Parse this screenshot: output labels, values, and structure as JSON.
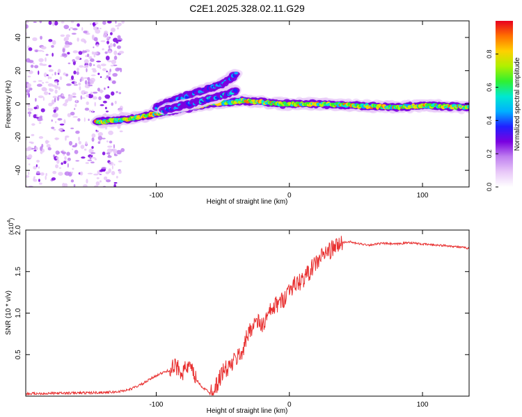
{
  "title": "C2E1.2025.328.02.11.G29",
  "chart_data": [
    {
      "type": "heatmap",
      "name": "spectrogram",
      "xlabel": "Height of straight line (km)",
      "ylabel": "Frequency (Hz)",
      "xlim": [
        -198,
        135
      ],
      "ylim": [
        -50,
        50
      ],
      "xticks": [
        -100,
        0,
        100
      ],
      "xtick_labels": [
        "-100",
        "0",
        "100"
      ],
      "yticks": [
        -40,
        -20,
        0,
        20,
        40
      ],
      "ytick_labels": [
        "-40",
        "-20",
        "0",
        "20",
        "40"
      ],
      "colorbar": {
        "label": "Normalized spectral amplitude",
        "range": [
          0,
          1
        ],
        "ticks": [
          0.0,
          0.2,
          0.4,
          0.6,
          0.8
        ],
        "tick_labels": [
          "0.0",
          "0.2",
          "0.4",
          "0.6",
          "0.8"
        ],
        "colors": [
          "#ffffff",
          "#e8c8f8",
          "#c080f0",
          "#7a00e0",
          "#2020ff",
          "#00b0ff",
          "#00e8d0",
          "#30f030",
          "#b0f000",
          "#ffd000",
          "#ff7000",
          "#e80020"
        ]
      },
      "tracks": [
        {
          "name": "main-track",
          "x": [
            -145,
            -120,
            -100,
            -80,
            -60,
            -45,
            -35,
            -20,
            -5,
            0,
            20,
            50,
            80,
            100,
            135
          ],
          "y": [
            -11,
            -9,
            -6,
            -3,
            0,
            1,
            2,
            1,
            0,
            0,
            0,
            -1,
            -2,
            -1,
            -2
          ],
          "amplitude": 0.9
        },
        {
          "name": "upper-branch",
          "x": [
            -100,
            -80,
            -65,
            -50,
            -40
          ],
          "y": [
            -2,
            4,
            8,
            12,
            18
          ],
          "amplitude": 0.5
        },
        {
          "name": "middle-branch",
          "x": [
            -95,
            -75,
            -55,
            -40
          ],
          "y": [
            -4,
            0,
            4,
            8
          ],
          "amplitude": 0.55
        }
      ],
      "noise_region": {
        "xmin": -198,
        "xmax": -125
      }
    },
    {
      "type": "line",
      "name": "snr",
      "xlabel": "Height of straight line (km)",
      "ylabel": "SNR (10 * v/v)",
      "scale_label": "(x10",
      "scale_exponent": "4",
      "scale_suffix": ")",
      "xlim": [
        -198,
        135
      ],
      "ylim": [
        0,
        2.0
      ],
      "xticks": [
        -100,
        0,
        100
      ],
      "xtick_labels": [
        "-100",
        "0",
        "100"
      ],
      "yticks": [
        0.5,
        1.0,
        1.5,
        2.0
      ],
      "ytick_labels": [
        "0.5",
        "1.0",
        "1.5",
        "2.0"
      ],
      "color": "#e83030",
      "series": [
        {
          "name": "SNR",
          "x": [
            -198,
            -150,
            -130,
            -120,
            -110,
            -100,
            -92,
            -85,
            -80,
            -75,
            -70,
            -65,
            -60,
            -55,
            -50,
            -45,
            -40,
            -35,
            -30,
            -25,
            -20,
            -15,
            -10,
            -5,
            0,
            5,
            10,
            15,
            20,
            25,
            30,
            35,
            40,
            45,
            50,
            60,
            70,
            80,
            90,
            100,
            110,
            120,
            135
          ],
          "y": [
            0.03,
            0.04,
            0.05,
            0.08,
            0.15,
            0.25,
            0.3,
            0.35,
            0.3,
            0.35,
            0.2,
            0.1,
            0.05,
            0.12,
            0.3,
            0.35,
            0.45,
            0.55,
            0.8,
            0.9,
            0.85,
            1.0,
            1.1,
            1.15,
            1.3,
            1.35,
            1.4,
            1.5,
            1.6,
            1.7,
            1.75,
            1.8,
            1.85,
            1.86,
            1.84,
            1.82,
            1.84,
            1.83,
            1.85,
            1.83,
            1.82,
            1.81,
            1.78
          ]
        }
      ]
    }
  ]
}
